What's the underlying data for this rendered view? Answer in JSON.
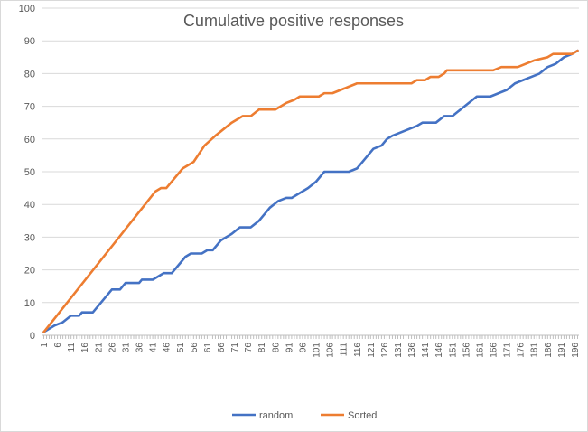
{
  "chart_data": {
    "type": "line",
    "title": "Cumulative positive responses",
    "xlabel": "",
    "ylabel": "",
    "x_start": 1,
    "x_end": 197,
    "x_tick_labels": [
      "1",
      "6",
      "11",
      "16",
      "21",
      "26",
      "31",
      "36",
      "41",
      "46",
      "51",
      "56",
      "61",
      "66",
      "71",
      "76",
      "81",
      "86",
      "91",
      "96",
      "101",
      "106",
      "111",
      "116",
      "121",
      "126",
      "131",
      "136",
      "141",
      "146",
      "151",
      "156",
      "161",
      "166",
      "171",
      "176",
      "181",
      "186",
      "191",
      "196"
    ],
    "y_ticks": [
      0,
      10,
      20,
      30,
      40,
      50,
      60,
      70,
      80,
      90,
      100
    ],
    "ylim": [
      0,
      100
    ],
    "grid": true,
    "legend_position": "bottom",
    "series": [
      {
        "name": "random",
        "color": "#4472c4",
        "points": [
          [
            1,
            1
          ],
          [
            3,
            2
          ],
          [
            5,
            3
          ],
          [
            8,
            4
          ],
          [
            11,
            6
          ],
          [
            14,
            6
          ],
          [
            15,
            7
          ],
          [
            19,
            7
          ],
          [
            21,
            9
          ],
          [
            24,
            12
          ],
          [
            26,
            14
          ],
          [
            29,
            14
          ],
          [
            31,
            16
          ],
          [
            36,
            16
          ],
          [
            37,
            17
          ],
          [
            41,
            17
          ],
          [
            43,
            18
          ],
          [
            45,
            19
          ],
          [
            48,
            19
          ],
          [
            51,
            22
          ],
          [
            53,
            24
          ],
          [
            55,
            25
          ],
          [
            59,
            25
          ],
          [
            61,
            26
          ],
          [
            63,
            26
          ],
          [
            66,
            29
          ],
          [
            68,
            30
          ],
          [
            70,
            31
          ],
          [
            73,
            33
          ],
          [
            77,
            33
          ],
          [
            80,
            35
          ],
          [
            84,
            39
          ],
          [
            87,
            41
          ],
          [
            90,
            42
          ],
          [
            92,
            42
          ],
          [
            94,
            43
          ],
          [
            96,
            44
          ],
          [
            98,
            45
          ],
          [
            101,
            47
          ],
          [
            104,
            50
          ],
          [
            113,
            50
          ],
          [
            116,
            51
          ],
          [
            119,
            54
          ],
          [
            122,
            57
          ],
          [
            125,
            58
          ],
          [
            127,
            60
          ],
          [
            129,
            61
          ],
          [
            132,
            62
          ],
          [
            135,
            63
          ],
          [
            138,
            64
          ],
          [
            140,
            65
          ],
          [
            145,
            65
          ],
          [
            148,
            67
          ],
          [
            151,
            67
          ],
          [
            154,
            69
          ],
          [
            157,
            71
          ],
          [
            160,
            73
          ],
          [
            165,
            73
          ],
          [
            168,
            74
          ],
          [
            171,
            75
          ],
          [
            174,
            77
          ],
          [
            177,
            78
          ],
          [
            180,
            79
          ],
          [
            183,
            80
          ],
          [
            186,
            82
          ],
          [
            189,
            83
          ],
          [
            192,
            85
          ],
          [
            195,
            86
          ],
          [
            197,
            87
          ]
        ]
      },
      {
        "name": "Sorted",
        "color": "#ed7d31",
        "points": [
          [
            1,
            1
          ],
          [
            42,
            44
          ],
          [
            44,
            45
          ],
          [
            46,
            45
          ],
          [
            52,
            51
          ],
          [
            56,
            53
          ],
          [
            60,
            58
          ],
          [
            64,
            61
          ],
          [
            67,
            63
          ],
          [
            70,
            65
          ],
          [
            72,
            66
          ],
          [
            74,
            67
          ],
          [
            77,
            67
          ],
          [
            80,
            69
          ],
          [
            86,
            69
          ],
          [
            90,
            71
          ],
          [
            93,
            72
          ],
          [
            95,
            73
          ],
          [
            102,
            73
          ],
          [
            104,
            74
          ],
          [
            107,
            74
          ],
          [
            110,
            75
          ],
          [
            113,
            76
          ],
          [
            116,
            77
          ],
          [
            136,
            77
          ],
          [
            138,
            78
          ],
          [
            141,
            78
          ],
          [
            143,
            79
          ],
          [
            146,
            79
          ],
          [
            148,
            80
          ],
          [
            149,
            81
          ],
          [
            166,
            81
          ],
          [
            169,
            82
          ],
          [
            175,
            82
          ],
          [
            178,
            83
          ],
          [
            181,
            84
          ],
          [
            186,
            85
          ],
          [
            188,
            86
          ],
          [
            195,
            86
          ],
          [
            197,
            87
          ]
        ]
      }
    ]
  }
}
